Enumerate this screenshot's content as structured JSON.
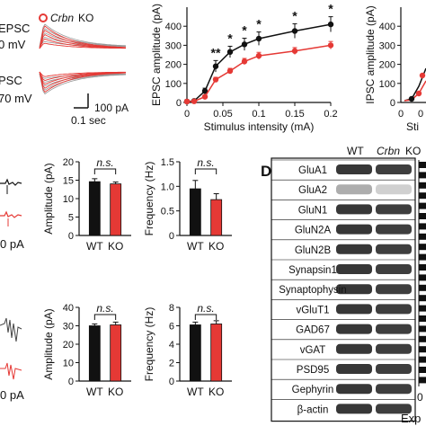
{
  "panel_a_text": {
    "ko_legend": "Crbn",
    "ko_suffix": "KO",
    "epsc_label": "EPSC",
    "epsc_mv": "0 mV",
    "ipsc_label": "PSC",
    "ipsc_mv": "70 mV",
    "scale_pa": "100 pA",
    "scale_sec": "0.1 sec"
  },
  "chart_data": [
    {
      "type": "line",
      "ylabel": "EPSC amplitude (pA)",
      "xlabel": "Stimulus intensity (mA)",
      "xlim": [
        0,
        0.2
      ],
      "ylim": [
        0,
        500
      ],
      "xticks": [
        "0",
        "0.05",
        "0.1",
        "0.15",
        "0.2"
      ],
      "yticks": [
        "0",
        "100",
        "200",
        "300",
        "400"
      ],
      "x": [
        0,
        0.01,
        0.025,
        0.04,
        0.06,
        0.08,
        0.1,
        0.15,
        0.2
      ],
      "series": [
        {
          "name": "WT",
          "color": "#111111",
          "values": [
            5,
            8,
            60,
            190,
            265,
            305,
            335,
            375,
            410
          ],
          "errors": [
            4,
            5,
            15,
            30,
            30,
            32,
            35,
            38,
            40
          ]
        },
        {
          "name": "Crbn KO",
          "color": "#e53935",
          "values": [
            5,
            6,
            30,
            120,
            165,
            215,
            245,
            270,
            300
          ],
          "errors": [
            3,
            4,
            8,
            12,
            14,
            16,
            18,
            18,
            20
          ]
        }
      ],
      "annotations": [
        "**",
        "*",
        "*",
        "*",
        "*",
        "*"
      ],
      "annotation_x": [
        0.04,
        0.06,
        0.08,
        0.1,
        0.15,
        0.2
      ]
    },
    {
      "type": "line",
      "ylabel": "IPSC amplitude (pA)",
      "xlabel": "Sti",
      "ylim": [
        0,
        500
      ],
      "yticks": [
        "0",
        "100",
        "200",
        "300",
        "400"
      ],
      "xticks": [
        "0",
        "0"
      ]
    },
    {
      "type": "bar",
      "ylabel": "Amplitude (pA)",
      "categories": [
        "WT",
        "KO"
      ],
      "values": [
        14.6,
        14.0
      ],
      "errors": [
        0.8,
        0.5
      ],
      "colors": [
        "#111111",
        "#e53935"
      ],
      "ylim": [
        0,
        20
      ],
      "yticks": [
        "0",
        "5",
        "10",
        "15",
        "20"
      ],
      "significance": "n.s."
    },
    {
      "type": "bar",
      "ylabel": "Frequency (Hz)",
      "categories": [
        "WT",
        "KO"
      ],
      "values": [
        0.95,
        0.73
      ],
      "errors": [
        0.17,
        0.12
      ],
      "colors": [
        "#111111",
        "#e53935"
      ],
      "ylim": [
        0,
        1.5
      ],
      "yticks": [
        "0",
        "0.5",
        "1.0",
        "1.5"
      ],
      "significance": "n.s."
    },
    {
      "type": "bar",
      "ylabel": "Amplitude (pA)",
      "categories": [
        "WT",
        "KO"
      ],
      "values": [
        30,
        30.5
      ],
      "errors": [
        1,
        1.5
      ],
      "colors": [
        "#111111",
        "#e53935"
      ],
      "ylim": [
        0,
        40
      ],
      "yticks": [
        "0",
        "10",
        "20",
        "30",
        "40"
      ],
      "significance": "n.s."
    },
    {
      "type": "bar",
      "ylabel": "Frequency (Hz)",
      "categories": [
        "WT",
        "KO"
      ],
      "values": [
        6.1,
        6.2
      ],
      "errors": [
        0.3,
        0.35
      ],
      "colors": [
        "#111111",
        "#e53935"
      ],
      "ylim": [
        0,
        8
      ],
      "yticks": [
        "0",
        "2",
        "4",
        "6",
        "8"
      ],
      "significance": "n.s."
    }
  ],
  "left_labels": {
    "mid_scale": "0 pA",
    "bottom_scale": "0 pA"
  },
  "panel_d": {
    "letter": "D",
    "col_wt": "WT",
    "col_ko_italic": "Crbn",
    "col_ko_suffix": "KO",
    "rows": [
      "GluA1",
      "GluA2",
      "GluN1",
      "GluN2A",
      "GluN2B",
      "Synapsin1",
      "Synaptophysin",
      "vGluT1",
      "GAD67",
      "vGAT",
      "PSD95",
      "Gephyrin",
      "β-actin"
    ],
    "axis_zero": "0",
    "axis_label": "Exp"
  }
}
